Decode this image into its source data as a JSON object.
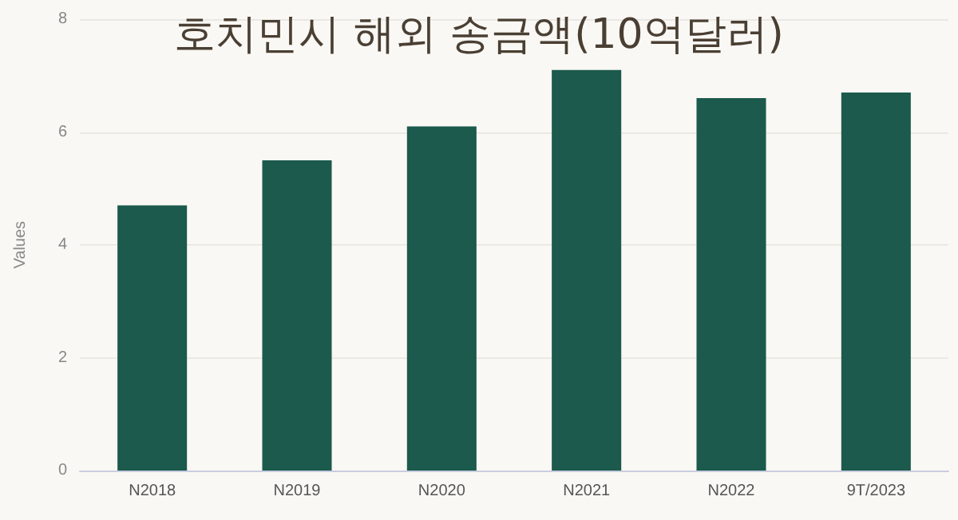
{
  "chart_data": {
    "type": "bar",
    "title": "호치민시 해외 송금액(10억달러)",
    "ylabel": "Values",
    "categories": [
      "N2018",
      "N2019",
      "N2020",
      "N2021",
      "N2022",
      "9T/2023"
    ],
    "values": [
      4.7,
      5.5,
      6.1,
      7.1,
      6.6,
      6.7
    ],
    "color": "#1b5a4c",
    "ylim": [
      0,
      8
    ],
    "yticks": [
      0,
      2,
      4,
      6,
      8
    ],
    "grid": "y"
  }
}
